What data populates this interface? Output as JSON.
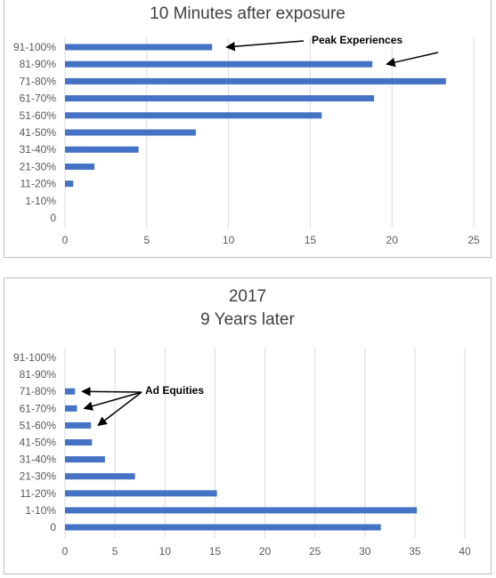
{
  "chart_data": [
    {
      "type": "bar",
      "orientation": "horizontal",
      "title": "10 Minutes after exposure",
      "categories": [
        "91-100%",
        "81-90%",
        "71-80%",
        "61-70%",
        "51-60%",
        "41-50%",
        "31-40%",
        "21-30%",
        "11-20%",
        "1-10%",
        "0"
      ],
      "values": [
        9,
        18.8,
        23.3,
        18.9,
        15.7,
        8,
        4.5,
        1.8,
        0.5,
        0,
        0
      ],
      "xlim": [
        0,
        25
      ],
      "xticks": [
        0,
        5,
        10,
        15,
        20,
        25
      ],
      "grid": "vertical",
      "color": "#4472c4",
      "annotations": [
        {
          "text": "Peak Experiences",
          "targets": [
            "91-100%",
            "81-90%"
          ]
        }
      ]
    },
    {
      "type": "bar",
      "orientation": "horizontal",
      "title": "2017",
      "subtitle": "9 Years later",
      "categories": [
        "91-100%",
        "81-90%",
        "71-80%",
        "61-70%",
        "51-60%",
        "41-50%",
        "31-40%",
        "21-30%",
        "11-20%",
        "1-10%",
        "0"
      ],
      "values": [
        0,
        0,
        1,
        1.2,
        2.6,
        2.7,
        4,
        7,
        15.2,
        35.2,
        31.6
      ],
      "xlim": [
        0,
        40
      ],
      "xticks": [
        0,
        5,
        10,
        15,
        20,
        25,
        30,
        35,
        40
      ],
      "grid": "vertical",
      "color": "#4472c4",
      "annotations": [
        {
          "text": "Ad Equities",
          "targets": [
            "71-80%",
            "61-70%",
            "51-60%"
          ]
        }
      ]
    }
  ]
}
